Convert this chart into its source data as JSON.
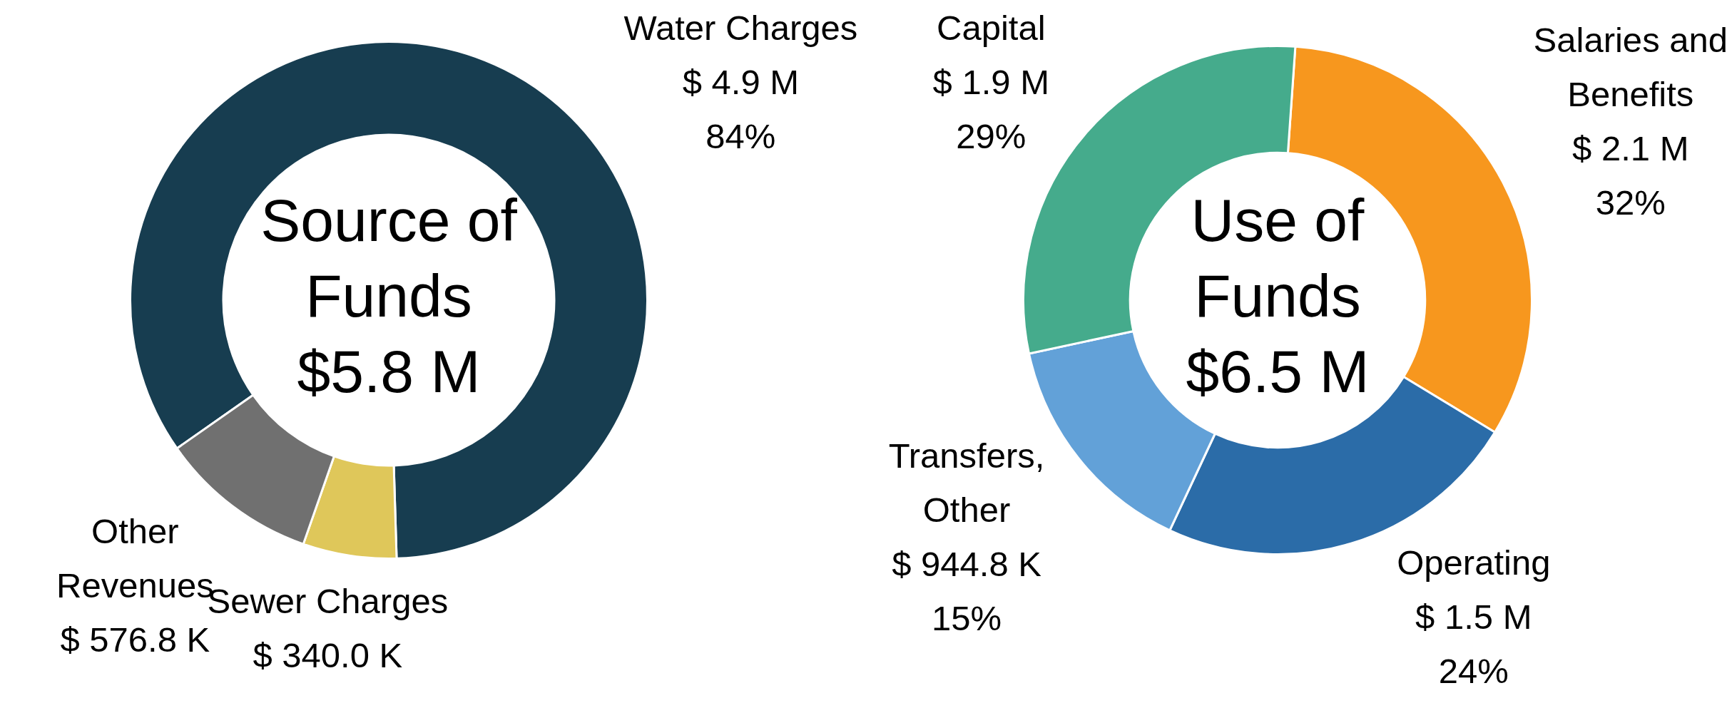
{
  "chart_data": [
    {
      "type": "donut",
      "title": "Source of Funds",
      "subtitle": "$5.8 M",
      "categories": [
        "Water Charges",
        "Sewer Charges",
        "Other Revenues"
      ],
      "values": [
        4900000,
        340000,
        576800
      ],
      "colors": [
        "#173d50",
        "#dfc75a",
        "#707070"
      ],
      "value_labels": [
        "$ 4.9 M\n84%",
        "$ 340.0 K",
        "$ 576.8 K"
      ],
      "legend": false
    },
    {
      "type": "donut",
      "title": "Use of Funds",
      "subtitle": "$6.5 M",
      "categories": [
        "Salaries and Benefits",
        "Operating",
        "Transfers, Other",
        "Capital"
      ],
      "values": [
        2100000,
        1500000,
        944800,
        1900000
      ],
      "colors": [
        "#f7971e",
        "#2b6ca8",
        "#62a1d8",
        "#45ab8c"
      ],
      "value_labels": [
        "$ 2.1 M\n32%",
        "$ 1.5 M\n24%",
        "$ 944.8 K\n15%",
        "$ 1.9 M\n29%"
      ],
      "legend": false
    }
  ]
}
